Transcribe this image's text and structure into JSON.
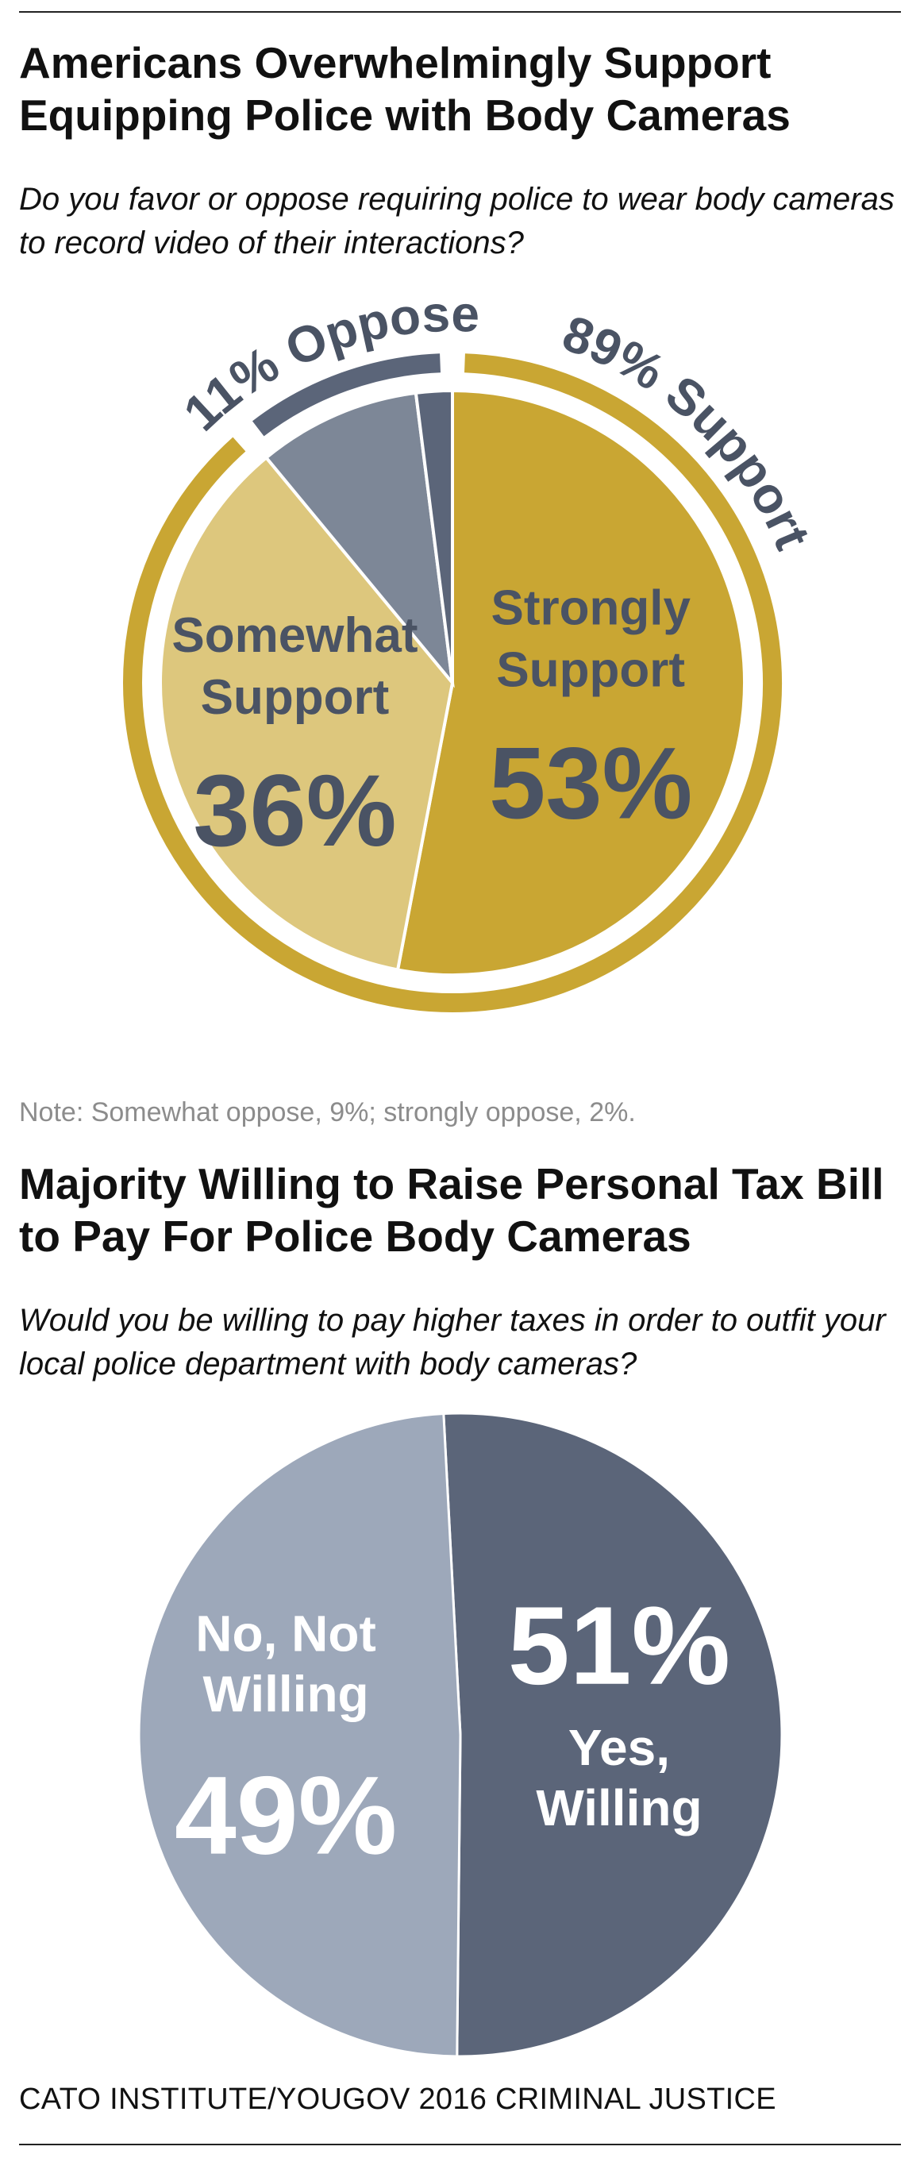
{
  "colors": {
    "gold": "#c9a633",
    "light_gold": "#ddc77d",
    "gray": "#7d8797",
    "dark_slate": "#5b6579",
    "light_slate": "#9da8ba",
    "label_text": "#4a5364"
  },
  "header": {
    "title": "Americans Overwhelmingly Support Equipping Police with Body Cameras",
    "subtitle": "Do you favor or oppose requiring police to wear body cameras to record video of their interactions?"
  },
  "note": "Note: Somewhat oppose, 9%; strongly oppose, 2%.",
  "second": {
    "title": "Majority Willing to Raise Personal Tax Bill to Pay For Police Body Cameras",
    "subtitle": "Would you be willing to pay higher taxes in order to outfit your local police department with body cameras?"
  },
  "source": "CATO INSTITUTE/YOUGOV 2016 CRIMINAL JUSTICE",
  "chart_data": [
    {
      "type": "pie",
      "title": "Americans Overwhelmingly Support Equipping Police with Body Cameras",
      "slices": [
        {
          "name": "Strongly Support",
          "value": 53,
          "label": "53%",
          "label_lines": [
            "Strongly",
            "Support"
          ],
          "color": "#c9a633"
        },
        {
          "name": "Somewhat Support",
          "value": 36,
          "label": "36%",
          "label_lines": [
            "Somewhat",
            "Support"
          ],
          "color": "#ddc77d"
        },
        {
          "name": "Somewhat oppose",
          "value": 9,
          "label": "",
          "label_lines": [],
          "color": "#7d8797"
        },
        {
          "name": "Strongly oppose",
          "value": 2,
          "label": "",
          "label_lines": [],
          "color": "#5b6579"
        }
      ],
      "groups": [
        {
          "name": "Support",
          "value": 89,
          "label": "89% Support",
          "color": "#c9a633"
        },
        {
          "name": "Oppose",
          "value": 11,
          "label": "11% Oppose",
          "color": "#5b6579"
        }
      ]
    },
    {
      "type": "pie",
      "title": "Majority Willing to Raise Personal Tax Bill to Pay For Police Body Cameras",
      "slices": [
        {
          "name": "Yes, Willing",
          "value": 51,
          "label": "51%",
          "label_lines": [
            "Yes,",
            "Willing"
          ],
          "color": "#5b6579"
        },
        {
          "name": "No, Not Willing",
          "value": 49,
          "label": "49%",
          "label_lines": [
            "No, Not",
            "Willing"
          ],
          "color": "#9da8ba"
        }
      ]
    }
  ]
}
